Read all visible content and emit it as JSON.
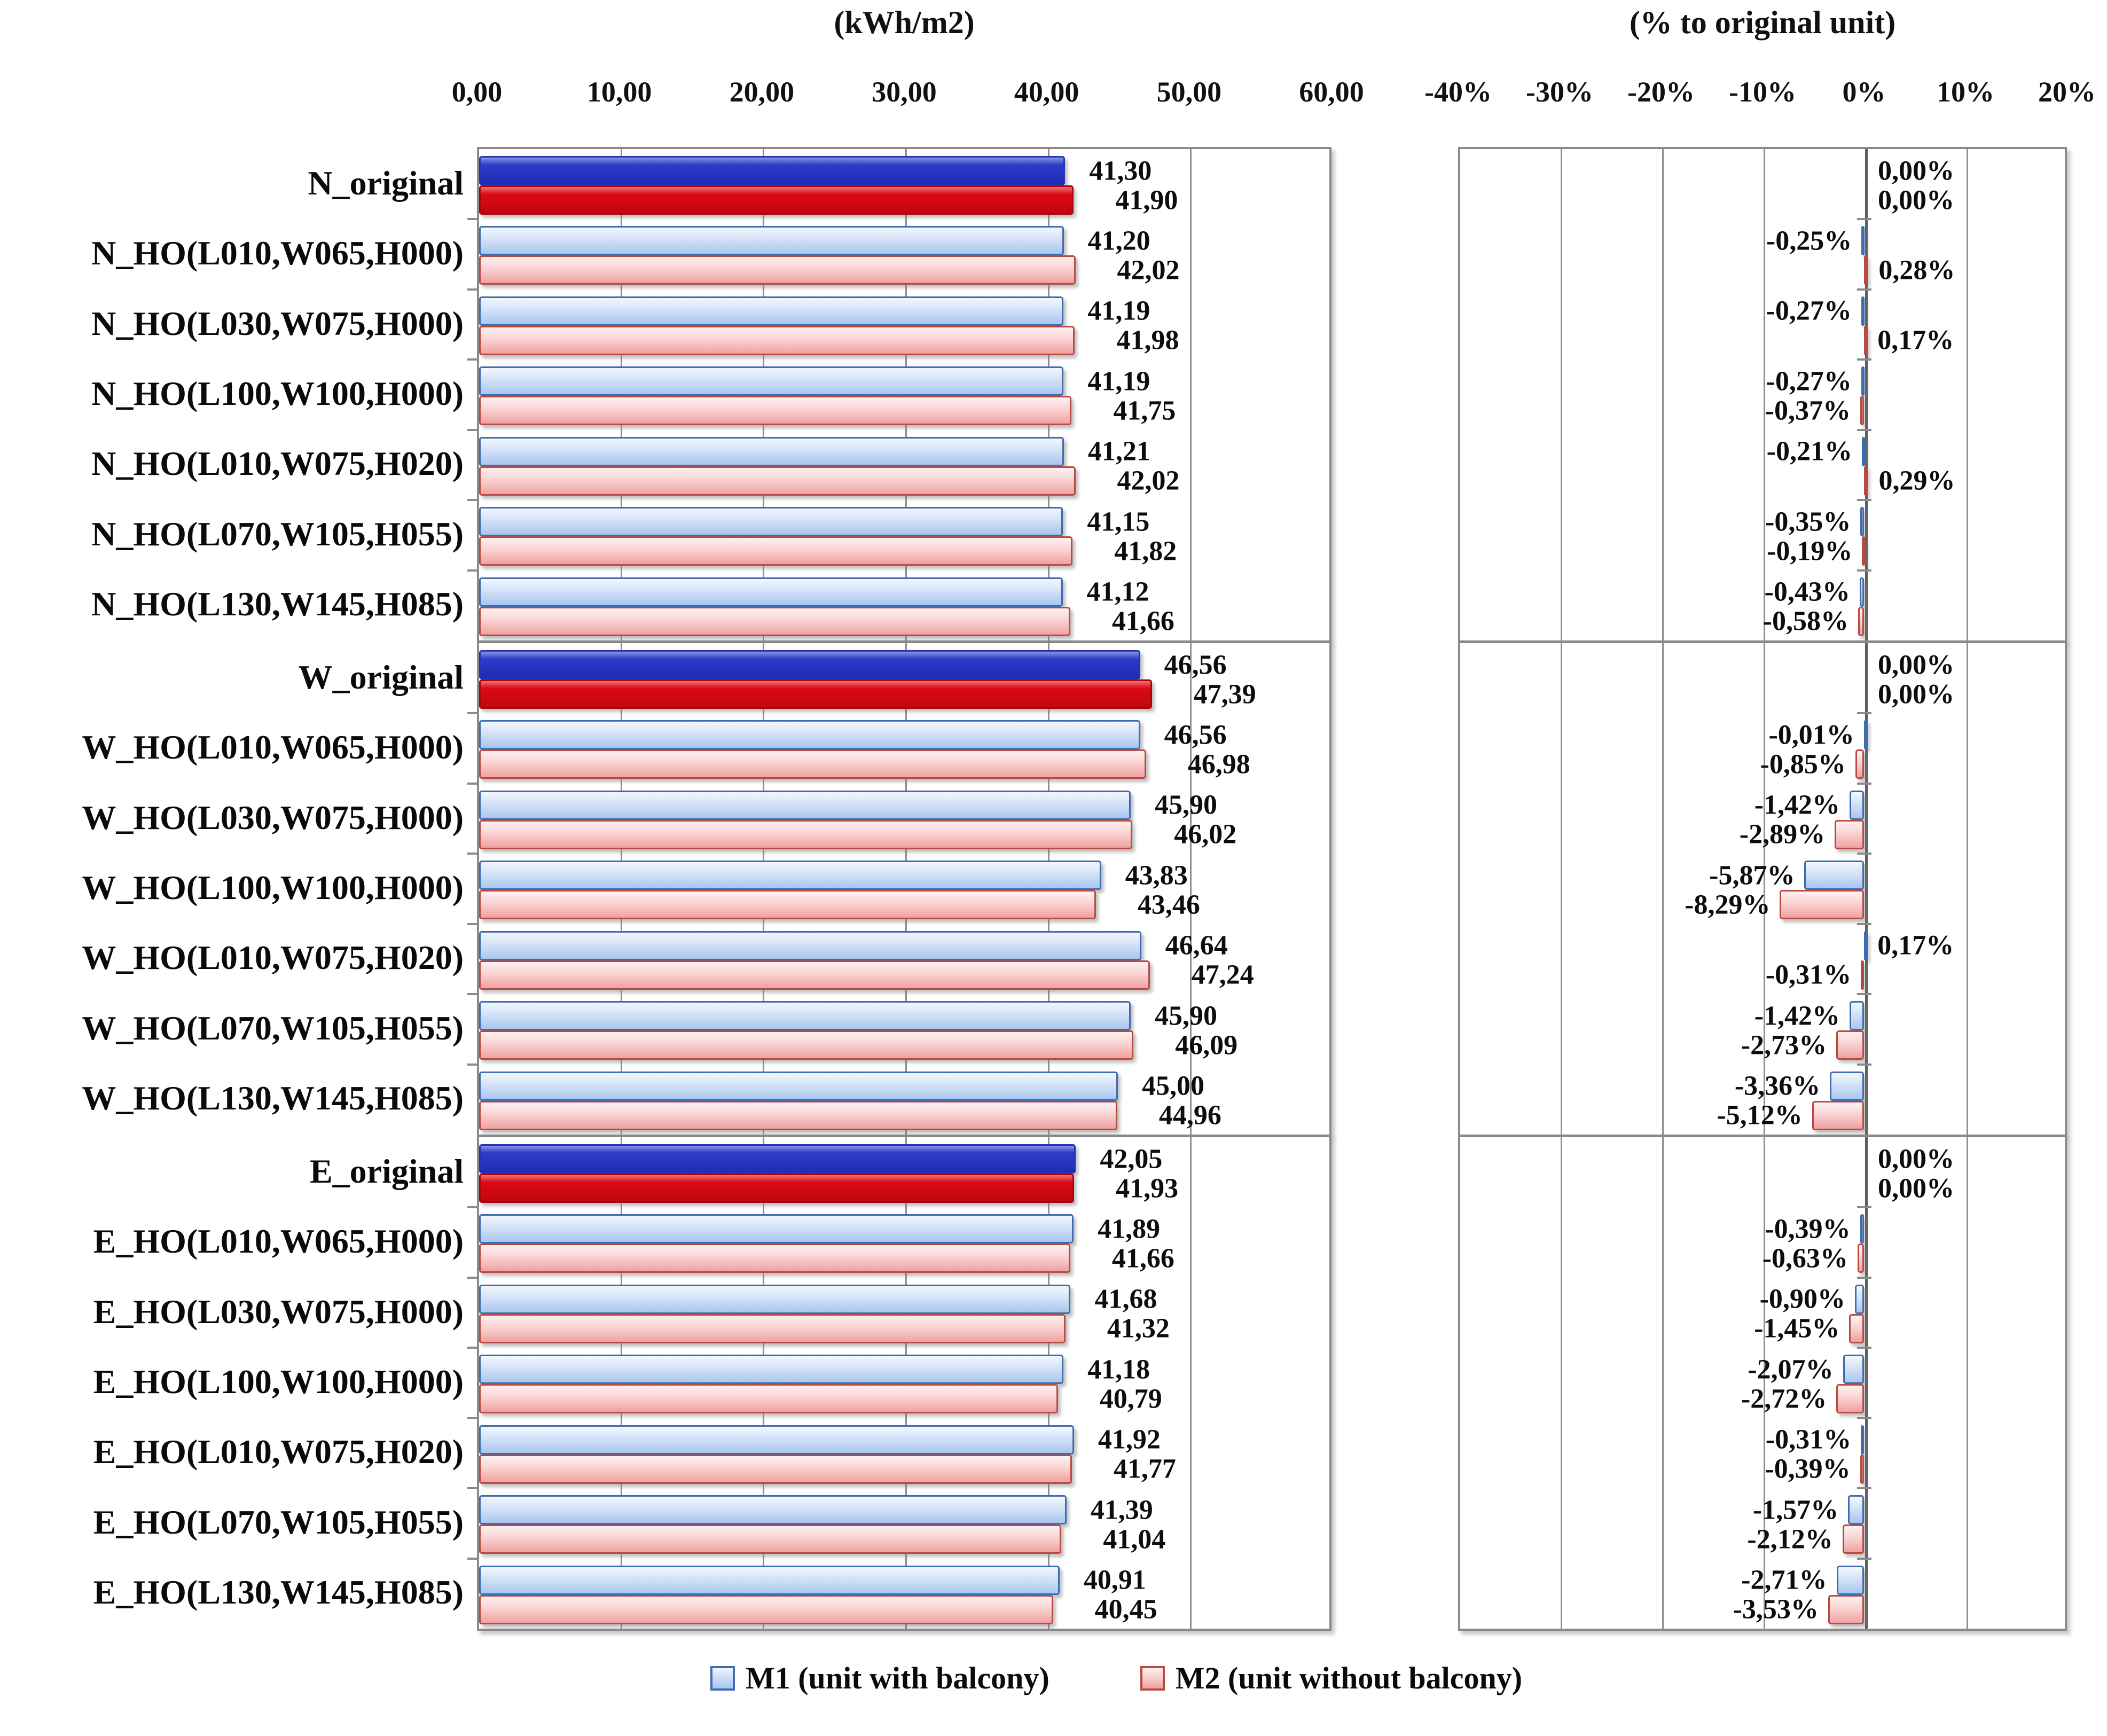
{
  "titles": {
    "left_panel": "(kWh/m2)",
    "right_panel": "(% to original unit)"
  },
  "legend": {
    "m1_label": "M1 (unit with balcony)",
    "m2_label": "M2 (unit without balcony)"
  },
  "colors": {
    "m1_fill": "#a8c7ef",
    "m1_border": "#3e6cb0",
    "m2_fill": "#efa1a1",
    "m2_border": "#b84a42",
    "m1_original_fill": "#2d3bc9",
    "m2_original_fill": "#da0a14",
    "grid": "#8f8f8f",
    "box_border": "#8a8a8a"
  },
  "chart_data": {
    "type": "bar",
    "orientation": "horizontal",
    "decimal_separator": ",",
    "groups": [
      "N",
      "W",
      "E"
    ],
    "categories": [
      "N_original",
      "N_HO(L010,W065,H000)",
      "N_HO(L030,W075,H000)",
      "N_HO(L100,W100,H000)",
      "N_HO(L010,W075,H020)",
      "N_HO(L070,W105,H055)",
      "N_HO(L130,W145,H085)",
      "W_original",
      "W_HO(L010,W065,H000)",
      "W_HO(L030,W075,H000)",
      "W_HO(L100,W100,H000)",
      "W_HO(L010,W075,H020)",
      "W_HO(L070,W105,H055)",
      "W_HO(L130,W145,H085)",
      "E_original",
      "E_HO(L010,W065,H000)",
      "E_HO(L030,W075,H000)",
      "E_HO(L100,W100,H000)",
      "E_HO(L010,W075,H020)",
      "E_HO(L070,W105,H055)",
      "E_HO(L130,W145,H085)"
    ],
    "panels": [
      {
        "id": "kwh",
        "title": "(kWh/m2)",
        "xlim": [
          0,
          60
        ],
        "tick_values": [
          0,
          10,
          20,
          30,
          40,
          50,
          60
        ],
        "tick_labels": [
          "0,00",
          "10,00",
          "20,00",
          "30,00",
          "40,00",
          "50,00",
          "60,00"
        ],
        "value_suffix": "",
        "series": [
          {
            "name": "M1 (unit with balcony)",
            "values": [
              41.3,
              41.2,
              41.19,
              41.19,
              41.21,
              41.15,
              41.12,
              46.56,
              46.56,
              45.9,
              43.83,
              46.64,
              45.9,
              45.0,
              42.05,
              41.89,
              41.68,
              41.18,
              41.92,
              41.39,
              40.91
            ]
          },
          {
            "name": "M2 (unit without balcony)",
            "values": [
              41.9,
              42.02,
              41.98,
              41.75,
              42.02,
              41.82,
              41.66,
              47.39,
              46.98,
              46.02,
              43.46,
              47.24,
              46.09,
              44.96,
              41.93,
              41.66,
              41.32,
              40.79,
              41.77,
              41.04,
              40.45
            ]
          }
        ]
      },
      {
        "id": "pct",
        "title": "(% to original unit)",
        "xlim": [
          -40,
          20
        ],
        "tick_values": [
          -40,
          -30,
          -20,
          -10,
          0,
          10,
          20
        ],
        "tick_labels": [
          "-40%",
          "-30%",
          "-20%",
          "-10%",
          "0%",
          "10%",
          "20%"
        ],
        "value_suffix": "%",
        "series": [
          {
            "name": "M1 (unit with balcony)",
            "values": [
              0.0,
              -0.25,
              -0.27,
              -0.27,
              -0.21,
              -0.35,
              -0.43,
              0.0,
              -0.01,
              -1.42,
              -5.87,
              0.17,
              -1.42,
              -3.36,
              0.0,
              -0.39,
              -0.9,
              -2.07,
              -0.31,
              -1.57,
              -2.71
            ]
          },
          {
            "name": "M2 (unit without balcony)",
            "values": [
              0.0,
              0.28,
              0.17,
              -0.37,
              0.29,
              -0.19,
              -0.58,
              0.0,
              -0.85,
              -2.89,
              -8.29,
              -0.31,
              -2.73,
              -5.12,
              0.0,
              -0.63,
              -1.45,
              -2.72,
              -0.39,
              -2.12,
              -3.53
            ]
          }
        ]
      }
    ]
  }
}
